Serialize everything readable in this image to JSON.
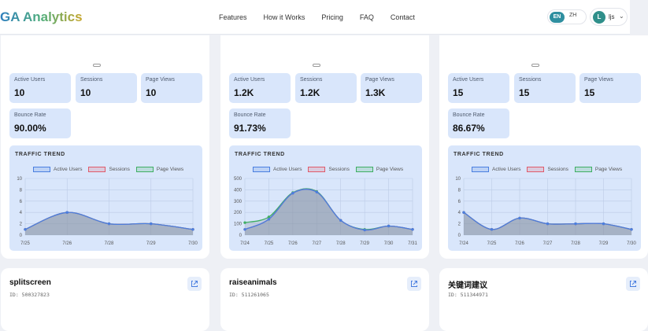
{
  "brand": "GA Analytics",
  "nav": [
    "Features",
    "How it Works",
    "Pricing",
    "FAQ",
    "Contact"
  ],
  "lang": {
    "en": "EN",
    "zh": "ZH"
  },
  "user": {
    "initial": "L",
    "name": "ljs"
  },
  "colors": {
    "active_users": "#4a7fe0",
    "sessions": "#e05a6a",
    "page_views": "#3fae63"
  },
  "labels": {
    "active_users": "Active Users",
    "sessions": "Sessions",
    "page_views": "Page Views",
    "bounce_rate": "Bounce Rate",
    "traffic_trend": "TRAFFIC TREND"
  },
  "properties": [
    {
      "name": "splitscreen",
      "id": "ID: 500327823",
      "active_users": "10",
      "sessions": "10",
      "page_views": "10",
      "bounce_rate": "90.00%",
      "chart_data": {
        "type": "area",
        "title": "TRAFFIC TREND",
        "x": [
          "7/25",
          "7/26",
          "7/28",
          "7/29",
          "7/30"
        ],
        "ylim": [
          0,
          10
        ],
        "yticks": [
          0,
          2,
          4,
          6,
          8,
          10
        ],
        "series": [
          {
            "name": "Active Users",
            "values": [
              1,
              4,
              2,
              2,
              1
            ]
          },
          {
            "name": "Sessions",
            "values": [
              1,
              4,
              2,
              2,
              1
            ]
          },
          {
            "name": "Page Views",
            "values": [
              1,
              4,
              2,
              2,
              1
            ]
          }
        ]
      }
    },
    {
      "name": "raiseanimals",
      "id": "ID: 511261065",
      "active_users": "1.2K",
      "sessions": "1.2K",
      "page_views": "1.3K",
      "bounce_rate": "91.73%",
      "chart_data": {
        "type": "area",
        "title": "TRAFFIC TREND",
        "x": [
          "7/24",
          "7/25",
          "7/26",
          "7/27",
          "7/28",
          "7/29",
          "7/30",
          "7/31"
        ],
        "ylim": [
          0,
          500
        ],
        "yticks": [
          0,
          100,
          200,
          300,
          400,
          500
        ],
        "series": [
          {
            "name": "Active Users",
            "values": [
              50,
              140,
              370,
              380,
              130,
              45,
              80,
              50
            ]
          },
          {
            "name": "Sessions",
            "values": [
              50,
              140,
              370,
              380,
              130,
              45,
              80,
              50
            ]
          },
          {
            "name": "Page Views",
            "values": [
              110,
              160,
              375,
              385,
              130,
              50,
              80,
              50
            ]
          }
        ]
      }
    },
    {
      "name": "关键词建议",
      "id": "ID: 511344971",
      "active_users": "15",
      "sessions": "15",
      "page_views": "15",
      "bounce_rate": "86.67%",
      "chart_data": {
        "type": "area",
        "title": "TRAFFIC TREND",
        "x": [
          "7/24",
          "7/25",
          "7/26",
          "7/27",
          "7/28",
          "7/29",
          "7/30"
        ],
        "ylim": [
          0,
          10
        ],
        "yticks": [
          0,
          2,
          4,
          6,
          8,
          10
        ],
        "series": [
          {
            "name": "Active Users",
            "values": [
              4,
              1,
              3,
              2,
              2,
              2,
              1
            ]
          },
          {
            "name": "Sessions",
            "values": [
              4,
              1,
              3,
              2,
              2,
              2,
              1
            ]
          },
          {
            "name": "Page Views",
            "values": [
              4,
              1,
              3,
              2,
              2,
              2,
              1
            ]
          }
        ]
      }
    }
  ]
}
